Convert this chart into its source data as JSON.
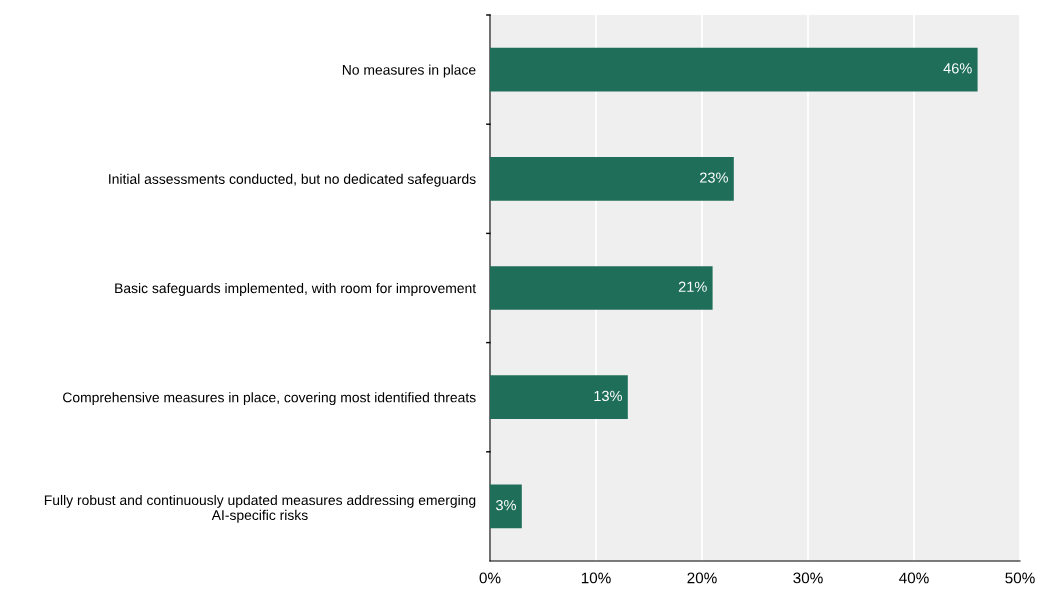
{
  "chart_data": {
    "type": "bar",
    "orientation": "horizontal",
    "categories": [
      "No measures in place",
      "Initial assessments conducted, but no dedicated safeguards",
      "Basic safeguards implemented, with room for improvement",
      "Comprehensive measures in place, covering most identified threats",
      "Fully robust and continuously updated measures addressing emerging AI-specific risks"
    ],
    "values": [
      46,
      23,
      21,
      13,
      3
    ],
    "value_labels": [
      "46%",
      "23%",
      "21%",
      "13%",
      "3%"
    ],
    "color": "#1f6e5a",
    "xlim": [
      0,
      50
    ],
    "xticks": [
      {
        "value": 0,
        "label": "0%"
      },
      {
        "value": 10,
        "label": "10%"
      },
      {
        "value": 20,
        "label": "20%"
      },
      {
        "value": 30,
        "label": "30%"
      },
      {
        "value": 40,
        "label": "40%"
      },
      {
        "value": 50,
        "label": "50%"
      }
    ],
    "grid": "x",
    "legend": false
  }
}
